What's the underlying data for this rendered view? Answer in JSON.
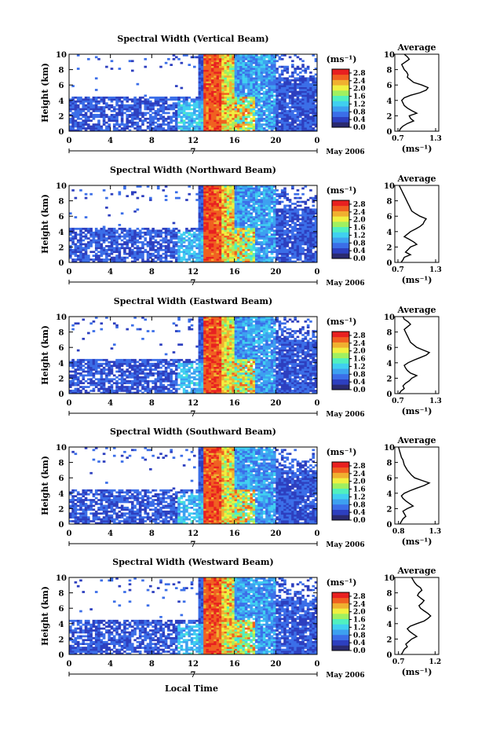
{
  "chart_data": {
    "type": "heatmap",
    "panels": [
      {
        "title": "Spectral Width (Vertical Beam)",
        "avg_xticks": [
          "0.7",
          "1.3"
        ],
        "avg_ticks_num": [
          0.7,
          1.3
        ],
        "avg_profile": [
          0.72,
          0.74,
          0.78,
          0.85,
          0.95,
          0.9,
          0.88,
          1.0,
          0.92,
          0.85,
          0.8,
          0.78,
          0.76,
          0.8,
          0.9,
          1.05,
          1.15,
          1.18,
          1.08,
          0.95,
          0.9,
          0.85,
          0.86,
          0.84,
          0.8,
          0.78,
          0.76,
          0.82,
          0.88,
          0.85,
          0.8
        ]
      },
      {
        "title": "Spectral Width (Northward Beam)",
        "avg_xticks": [
          "0.7",
          "1.3"
        ],
        "avg_ticks_num": [
          0.7,
          1.3
        ],
        "avg_profile": [
          0.75,
          0.78,
          0.8,
          0.9,
          0.82,
          0.86,
          0.9,
          1.0,
          0.95,
          0.88,
          0.8,
          0.85,
          0.9,
          0.98,
          1.05,
          1.1,
          1.12,
          1.15,
          1.05,
          0.98,
          0.92,
          0.9,
          0.88,
          0.86,
          0.84,
          0.82,
          0.8,
          0.78,
          0.76,
          0.74,
          0.72
        ]
      },
      {
        "title": "Spectral Width (Eastward Beam)",
        "avg_xticks": [
          "0.7",
          "1.3"
        ],
        "avg_ticks_num": [
          0.7,
          1.3
        ],
        "avg_profile": [
          0.72,
          0.75,
          0.8,
          0.78,
          0.82,
          0.88,
          0.92,
          1.0,
          0.9,
          0.85,
          0.82,
          0.8,
          0.86,
          0.95,
          1.05,
          1.15,
          1.2,
          1.1,
          1.0,
          0.95,
          0.9,
          0.88,
          0.86,
          0.84,
          0.82,
          0.8,
          0.85,
          0.9,
          0.86,
          0.8,
          0.78
        ]
      },
      {
        "title": "Spectral Width (Southward Beam)",
        "avg_xticks": [
          "0.8",
          "1.3"
        ],
        "avg_ticks_num": [
          0.8,
          1.3
        ],
        "avg_profile": [
          0.82,
          0.84,
          0.86,
          0.9,
          0.88,
          0.86,
          0.92,
          1.0,
          0.95,
          0.9,
          0.86,
          0.84,
          0.88,
          0.96,
          1.05,
          1.15,
          1.22,
          1.12,
          1.02,
          0.98,
          0.95,
          0.92,
          0.9,
          0.88,
          0.87,
          0.86,
          0.84,
          0.83,
          0.82,
          0.81,
          0.8
        ]
      },
      {
        "title": "Spectral Width (Westward Beam)",
        "avg_xticks": [
          "0.7",
          "1.2"
        ],
        "avg_ticks_num": [
          0.7,
          1.2
        ],
        "avg_profile": [
          0.74,
          0.76,
          0.78,
          0.82,
          0.8,
          0.84,
          0.88,
          0.95,
          0.9,
          0.85,
          0.82,
          0.86,
          0.95,
          1.05,
          1.1,
          1.14,
          1.1,
          1.05,
          1.0,
          0.98,
          1.02,
          1.05,
          1.0,
          0.96,
          0.98,
          1.02,
          1.0,
          0.95,
          0.92,
          0.9,
          0.88
        ]
      }
    ],
    "xticks": [
      "0",
      "4",
      "8",
      "12",
      "16",
      "20",
      "0"
    ],
    "xtick_values": [
      0,
      4,
      8,
      12,
      16,
      20,
      24
    ],
    "date_marker": "7",
    "month_year_label": "May 2006",
    "xlabel": "Local Time",
    "ylabel": "Height (km)",
    "yticks": [
      "0",
      "2",
      "4",
      "6",
      "8",
      "10"
    ],
    "ytick_values": [
      0,
      2,
      4,
      6,
      8,
      10
    ],
    "ylim": [
      0,
      10
    ],
    "xlim": [
      0,
      24
    ],
    "colorbar": {
      "unit_label": "(ms⁻¹)",
      "ticks": [
        "0.0",
        "0.4",
        "0.8",
        "1.2",
        "1.6",
        "2.0",
        "2.4",
        "2.8"
      ],
      "tick_values": [
        0.0,
        0.4,
        0.8,
        1.2,
        1.6,
        2.0,
        2.4,
        2.8
      ],
      "range": [
        0,
        3.0
      ],
      "colors": [
        "#2a2a70",
        "#2d3fbf",
        "#3b6ee8",
        "#3da0f0",
        "#40d0f0",
        "#50f0c0",
        "#a0f060",
        "#f0f040",
        "#f0b030",
        "#f06020",
        "#e82020"
      ]
    },
    "average_title": "Average",
    "average_xlabel": "(ms⁻¹)",
    "average_ytick_values": [
      0,
      2,
      4,
      6,
      8,
      10
    ]
  }
}
